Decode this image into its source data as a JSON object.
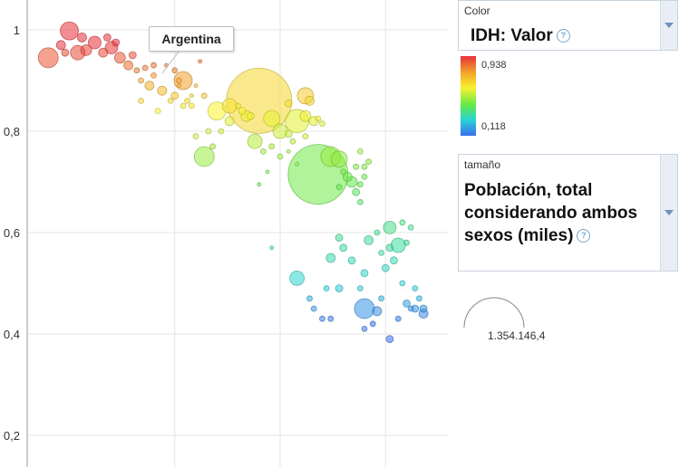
{
  "chart_data": {
    "type": "scatter",
    "y_ticks": [
      "1",
      "0,8",
      "0,6",
      "0,4",
      "0,2"
    ],
    "y_tick_values": [
      1.0,
      0.8,
      0.6,
      0.4,
      0.2
    ],
    "ylim": [
      0.15,
      1.06
    ],
    "xlim": [
      0,
      100
    ],
    "x_gridlines": [
      35,
      60,
      85
    ],
    "grid": true,
    "highlight": {
      "label": "Argentina",
      "x": 32,
      "y": 0.9
    },
    "points": [
      [
        5,
        0.945,
        11
      ],
      [
        10,
        0.998,
        10
      ],
      [
        12,
        0.955,
        8
      ],
      [
        16,
        0.975,
        7
      ],
      [
        14,
        0.96,
        6
      ],
      [
        8,
        0.97,
        5
      ],
      [
        20,
        0.965,
        7
      ],
      [
        22,
        0.945,
        6
      ],
      [
        18,
        0.955,
        5
      ],
      [
        24,
        0.93,
        5
      ],
      [
        13,
        0.985,
        5
      ],
      [
        19,
        0.985,
        4
      ],
      [
        21,
        0.975,
        4
      ],
      [
        25,
        0.95,
        4
      ],
      [
        9,
        0.955,
        4
      ],
      [
        26,
        0.92,
        3
      ],
      [
        28,
        0.925,
        3
      ],
      [
        30,
        0.91,
        3
      ],
      [
        27,
        0.9,
        3
      ],
      [
        30,
        0.93,
        3
      ],
      [
        33,
        0.93,
        2
      ],
      [
        35,
        0.92,
        3
      ],
      [
        36,
        0.9,
        3
      ],
      [
        38,
        0.86,
        3
      ],
      [
        39,
        0.87,
        2
      ],
      [
        40,
        0.89,
        2
      ],
      [
        41,
        0.938,
        2
      ],
      [
        29,
        0.89,
        5
      ],
      [
        32,
        0.88,
        5
      ],
      [
        35,
        0.87,
        4
      ],
      [
        37,
        0.85,
        3
      ],
      [
        39,
        0.85,
        3
      ],
      [
        34,
        0.86,
        3
      ],
      [
        27,
        0.86,
        3
      ],
      [
        31,
        0.84,
        3
      ],
      [
        36,
        0.89,
        2
      ],
      [
        42,
        0.87,
        3
      ],
      [
        37,
        0.9,
        10
      ],
      [
        45,
        0.84,
        10
      ],
      [
        48,
        0.85,
        8
      ],
      [
        52,
        0.83,
        6
      ],
      [
        48,
        0.82,
        5
      ],
      [
        51,
        0.84,
        4
      ],
      [
        53,
        0.83,
        4
      ],
      [
        50,
        0.85,
        3
      ],
      [
        55,
        0.86,
        36
      ],
      [
        58,
        0.825,
        9
      ],
      [
        60,
        0.8,
        8
      ],
      [
        62,
        0.795,
        4
      ],
      [
        63,
        0.78,
        3
      ],
      [
        64,
        0.82,
        13
      ],
      [
        66,
        0.83,
        6
      ],
      [
        68,
        0.82,
        5
      ],
      [
        66,
        0.87,
        9
      ],
      [
        67,
        0.86,
        5
      ],
      [
        69,
        0.825,
        3
      ],
      [
        70,
        0.815,
        3
      ],
      [
        66,
        0.79,
        3
      ],
      [
        62,
        0.855,
        4
      ],
      [
        42,
        0.75,
        11
      ],
      [
        44,
        0.77,
        3
      ],
      [
        40,
        0.79,
        3
      ],
      [
        43,
        0.8,
        3
      ],
      [
        46,
        0.8,
        3
      ],
      [
        54,
        0.78,
        8
      ],
      [
        56,
        0.76,
        3
      ],
      [
        58,
        0.77,
        3
      ],
      [
        60,
        0.75,
        3
      ],
      [
        57,
        0.72,
        2
      ],
      [
        62,
        0.76,
        2
      ],
      [
        64,
        0.735,
        2
      ],
      [
        55,
        0.695,
        2
      ],
      [
        69,
        0.715,
        33
      ],
      [
        72,
        0.75,
        11
      ],
      [
        74,
        0.745,
        9
      ],
      [
        76,
        0.71,
        5
      ],
      [
        77,
        0.7,
        6
      ],
      [
        78,
        0.68,
        4
      ],
      [
        79,
        0.695,
        3
      ],
      [
        75,
        0.72,
        3
      ],
      [
        78,
        0.73,
        3
      ],
      [
        80,
        0.73,
        3
      ],
      [
        74,
        0.69,
        3
      ],
      [
        80,
        0.71,
        3
      ],
      [
        79,
        0.66,
        3
      ],
      [
        81,
        0.74,
        3
      ],
      [
        79,
        0.76,
        3
      ],
      [
        86,
        0.61,
        7
      ],
      [
        89,
        0.62,
        3
      ],
      [
        83,
        0.6,
        3
      ],
      [
        81,
        0.585,
        5
      ],
      [
        74,
        0.59,
        4
      ],
      [
        75,
        0.57,
        4
      ],
      [
        72,
        0.55,
        5
      ],
      [
        77,
        0.545,
        4
      ],
      [
        80,
        0.52,
        4
      ],
      [
        84,
        0.56,
        3
      ],
      [
        86,
        0.57,
        4
      ],
      [
        87,
        0.545,
        4
      ],
      [
        88,
        0.575,
        8
      ],
      [
        90,
        0.58,
        3
      ],
      [
        91,
        0.61,
        3
      ],
      [
        85,
        0.53,
        4
      ],
      [
        89,
        0.5,
        3
      ],
      [
        92,
        0.49,
        3
      ],
      [
        93,
        0.47,
        3
      ],
      [
        90,
        0.46,
        4
      ],
      [
        88,
        0.43,
        3
      ],
      [
        91,
        0.45,
        3
      ],
      [
        92,
        0.45,
        4
      ],
      [
        94,
        0.45,
        4
      ],
      [
        94,
        0.44,
        5
      ],
      [
        86,
        0.39,
        4
      ],
      [
        80,
        0.45,
        11
      ],
      [
        83,
        0.445,
        5
      ],
      [
        82,
        0.42,
        3
      ],
      [
        84,
        0.47,
        3
      ],
      [
        80,
        0.41,
        3
      ],
      [
        79,
        0.49,
        3
      ],
      [
        71,
        0.49,
        3
      ],
      [
        74,
        0.49,
        4
      ],
      [
        68,
        0.45,
        3
      ],
      [
        72,
        0.43,
        3
      ],
      [
        67,
        0.47,
        3
      ],
      [
        64,
        0.51,
        8
      ],
      [
        70,
        0.43,
        3
      ],
      [
        58,
        0.57,
        2
      ]
    ]
  },
  "color_panel": {
    "caption": "Color",
    "title": "IDH: Valor",
    "max": "0,938",
    "min": "0,118"
  },
  "size_panel": {
    "caption": "tamaño",
    "title": "Población, total considerando ambos sexos (miles)",
    "value": "1.354.146,4"
  },
  "tooltip": {
    "label": "Argentina"
  }
}
